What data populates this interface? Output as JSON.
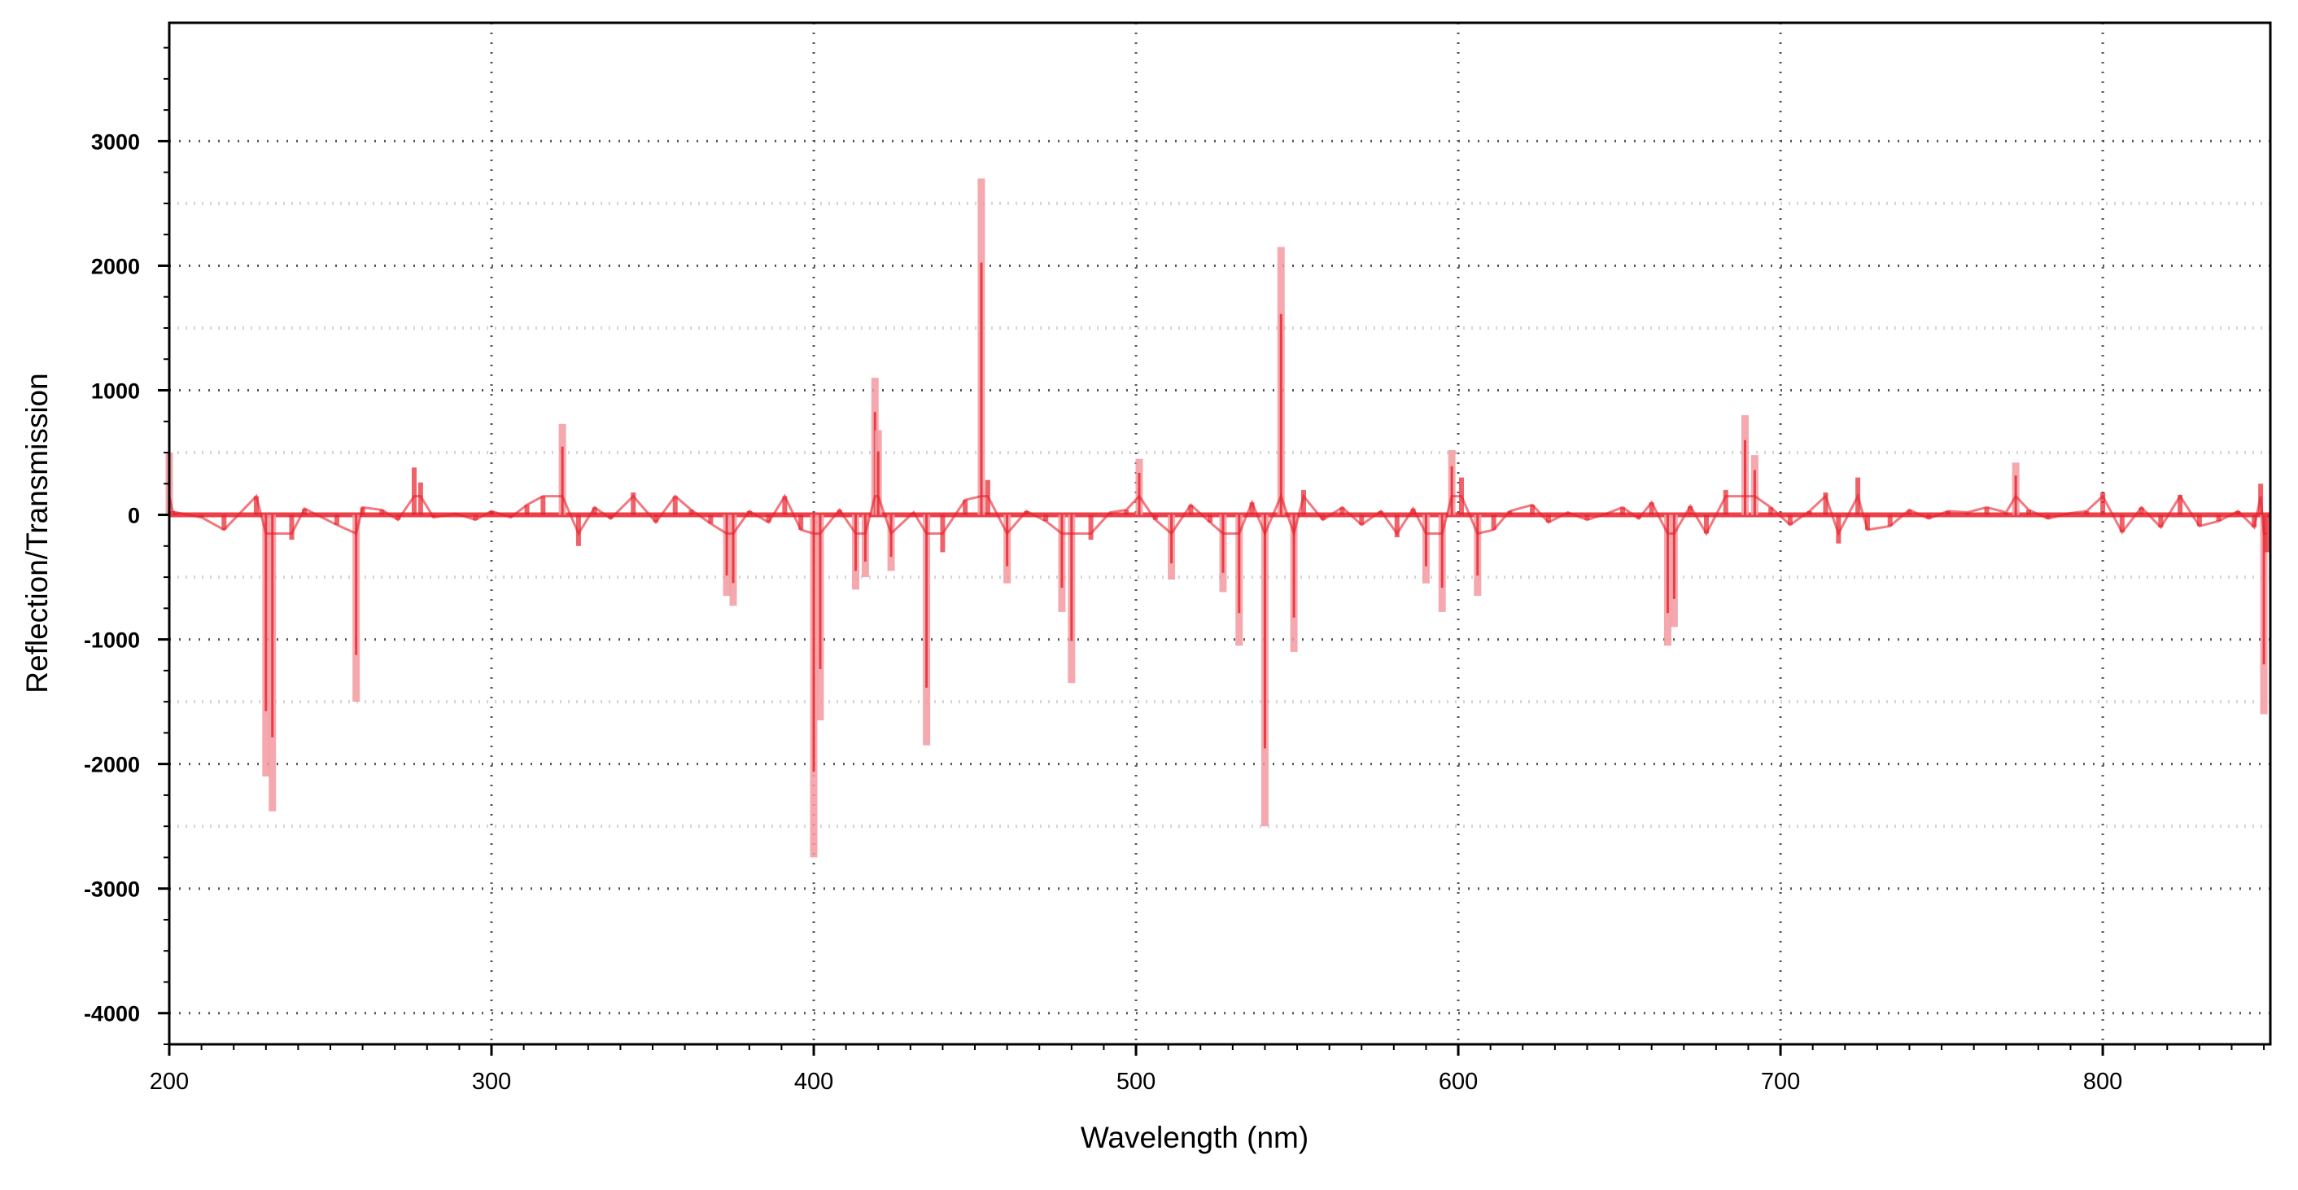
{
  "chart_data": {
    "type": "line",
    "xlabel": "Wavelength (nm)",
    "ylabel": "Reflection/Transmission",
    "xlim": [
      200,
      852
    ],
    "ylim": [
      -4250,
      3950
    ],
    "xticks": [
      200,
      300,
      400,
      500,
      600,
      700,
      800
    ],
    "yticks": [
      3000,
      2000,
      1000,
      0,
      -1000,
      -2000,
      -3000,
      -4000
    ],
    "grid": true,
    "colors": {
      "series": "#e8202a",
      "series_light": "#f39aa0",
      "grid": "#555555",
      "axis": "#000000"
    },
    "series": [
      {
        "x": [
          200,
          201,
          202,
          210,
          217,
          227,
          230,
          232,
          238,
          242,
          252,
          258,
          260,
          266,
          271,
          276,
          278,
          282,
          289,
          295,
          300,
          306,
          311,
          316,
          322,
          327,
          332,
          337,
          344,
          351,
          357,
          362,
          368,
          373,
          375,
          380,
          386,
          391,
          396,
          400,
          402,
          408,
          413,
          416,
          419,
          420,
          424,
          431,
          435,
          440,
          447,
          452,
          454,
          460,
          466,
          472,
          477,
          480,
          486,
          492,
          497,
          501,
          506,
          511,
          517,
          523,
          527,
          532,
          536,
          540,
          545,
          549,
          552,
          558,
          564,
          570,
          576,
          581,
          586,
          590,
          595,
          598,
          601,
          606,
          611,
          616,
          623,
          628,
          634,
          640,
          646,
          651,
          656,
          660,
          665,
          667,
          672,
          677,
          683,
          689,
          692,
          697,
          703,
          709,
          714,
          718,
          724,
          727,
          734,
          740,
          746,
          752,
          758,
          764,
          770,
          773,
          777,
          783,
          789,
          795,
          800,
          806,
          812,
          818,
          824,
          830,
          836,
          842,
          847,
          849,
          850,
          851
        ],
        "y": [
          500,
          30,
          20,
          -20,
          -120,
          150,
          -2100,
          -2380,
          -200,
          50,
          -80,
          -1500,
          60,
          40,
          -40,
          380,
          260,
          -20,
          10,
          -40,
          30,
          -20,
          80,
          150,
          730,
          -250,
          60,
          -30,
          180,
          -60,
          150,
          40,
          -70,
          -650,
          -730,
          30,
          -60,
          150,
          -120,
          -2750,
          -1650,
          40,
          -600,
          -500,
          1100,
          680,
          -450,
          20,
          -1850,
          -300,
          120,
          2700,
          280,
          -550,
          30,
          -50,
          -780,
          -1350,
          -200,
          20,
          40,
          450,
          -40,
          -520,
          80,
          -60,
          -620,
          -1050,
          100,
          -2500,
          2150,
          -1100,
          200,
          -40,
          60,
          -80,
          30,
          -180,
          50,
          -550,
          -780,
          520,
          300,
          -650,
          -120,
          30,
          80,
          -60,
          20,
          -40,
          10,
          60,
          -30,
          100,
          -1050,
          -900,
          70,
          -150,
          200,
          800,
          480,
          60,
          -80,
          30,
          180,
          -230,
          300,
          -120,
          -90,
          40,
          -30,
          30,
          20,
          60,
          20,
          420,
          40,
          -30,
          10,
          30,
          180,
          -140,
          60,
          -100,
          160,
          -90,
          -50,
          30,
          -100,
          250,
          -1600,
          -300
        ]
      }
    ]
  }
}
